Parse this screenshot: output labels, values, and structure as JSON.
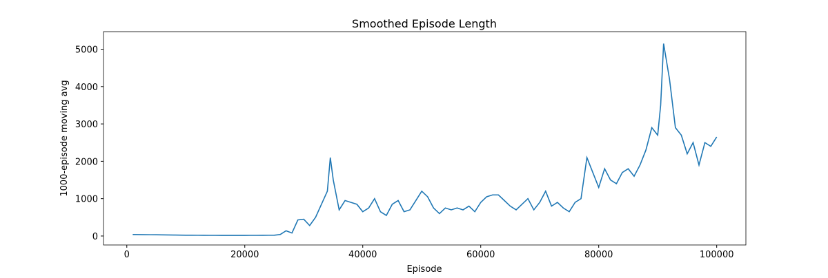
{
  "chart_data": {
    "type": "line",
    "title": "Smoothed Episode Length",
    "x_label": "Episode",
    "y_label": "1000-episode moving avg",
    "x": [
      1000,
      2000,
      3000,
      4000,
      5000,
      6000,
      7000,
      8000,
      9000,
      10000,
      11000,
      12000,
      13000,
      14000,
      15000,
      16000,
      17000,
      18000,
      19000,
      20000,
      21000,
      22000,
      23000,
      24000,
      25000,
      26000,
      27000,
      28000,
      29000,
      30000,
      31000,
      32000,
      33000,
      34000,
      34500,
      35000,
      36000,
      37000,
      38000,
      39000,
      40000,
      41000,
      42000,
      43000,
      44000,
      45000,
      46000,
      47000,
      48000,
      49000,
      50000,
      51000,
      52000,
      53000,
      54000,
      55000,
      56000,
      57000,
      58000,
      59000,
      60000,
      61000,
      62000,
      63000,
      64000,
      65000,
      66000,
      67000,
      68000,
      69000,
      70000,
      71000,
      72000,
      73000,
      74000,
      75000,
      76000,
      77000,
      78000,
      79000,
      80000,
      81000,
      82000,
      83000,
      84000,
      85000,
      86000,
      87000,
      88000,
      89000,
      90000,
      90500,
      91000,
      92000,
      93000,
      94000,
      95000,
      96000,
      97000,
      98000,
      99000,
      100000
    ],
    "series": [
      {
        "name": "Smoothed Episode Length",
        "color": "#1f77b4",
        "values": [
          40,
          38,
          36,
          34,
          32,
          30,
          28,
          26,
          24,
          22,
          21,
          20,
          19,
          18,
          18,
          17,
          17,
          17,
          17,
          17,
          18,
          18,
          19,
          20,
          22,
          40,
          140,
          80,
          430,
          450,
          280,
          500,
          850,
          1200,
          2100,
          1500,
          700,
          950,
          900,
          850,
          650,
          750,
          1000,
          650,
          550,
          850,
          950,
          650,
          700,
          950,
          1200,
          1050,
          750,
          600,
          750,
          700,
          750,
          700,
          800,
          650,
          900,
          1050,
          1100,
          1100,
          950,
          800,
          700,
          850,
          1000,
          700,
          900,
          1200,
          800,
          900,
          750,
          650,
          900,
          1000,
          2100,
          1700,
          1300,
          1800,
          1500,
          1400,
          1700,
          1800,
          1600,
          1900,
          2300,
          2900,
          2700,
          3500,
          5150,
          4200,
          2900,
          2700,
          2200,
          2500,
          1900,
          2500,
          2400,
          2650
        ]
      }
    ],
    "xlim": [
      -3950,
      104950
    ],
    "ylim": [
      -240,
      5470
    ],
    "xticks": [
      0,
      20000,
      40000,
      60000,
      80000,
      100000
    ],
    "yticks": [
      0,
      1000,
      2000,
      3000,
      4000,
      5000
    ]
  }
}
